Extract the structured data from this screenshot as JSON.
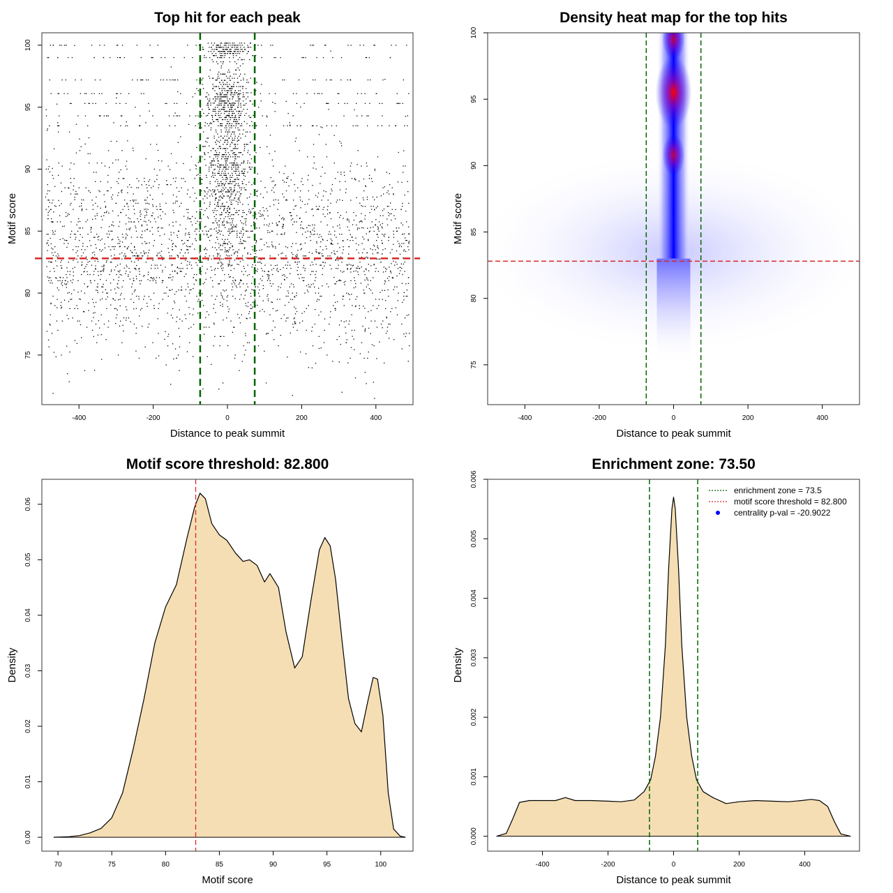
{
  "chart_data": [
    {
      "type": "scatter",
      "title": "Top hit for each peak",
      "xlabel": "Distance to peak summit",
      "ylabel": "Motif score",
      "xlim": [
        -500,
        500
      ],
      "ylim": [
        71,
        101
      ],
      "xticks": [
        -400,
        -200,
        0,
        200,
        400
      ],
      "yticks": [
        75,
        80,
        85,
        90,
        95,
        100
      ],
      "hlines": [
        {
          "value": 82.8,
          "color": "#d62728",
          "style": "dashed"
        }
      ],
      "vlines": [
        {
          "value": -73.5,
          "color": "#006400",
          "style": "dashed"
        },
        {
          "value": 73.5,
          "color": "#006400",
          "style": "dashed"
        }
      ],
      "points_summary": "Several thousand points; uniform spread across x in [-490, 490] for scores ~76-94, dense cluster within |x| < 75 for scores 83-100",
      "colors": {
        "points": "#000000"
      }
    },
    {
      "type": "heatmap",
      "title": "Density heat map for the top hits",
      "xlabel": "Distance to peak summit",
      "ylabel": "Motif score",
      "xlim": [
        -500,
        500
      ],
      "ylim": [
        72,
        100
      ],
      "xticks": [
        -400,
        -200,
        0,
        200,
        400
      ],
      "yticks": [
        75,
        80,
        85,
        90,
        95,
        100
      ],
      "hlines": [
        {
          "value": 82.8,
          "color": "#d62728",
          "style": "dashed"
        }
      ],
      "vlines": [
        {
          "value": -73.5,
          "color": "#006400",
          "style": "dashed"
        },
        {
          "value": 73.5,
          "color": "#006400",
          "style": "dashed"
        }
      ],
      "density_peaks": [
        {
          "x": 0,
          "y": 95.5,
          "level": "max"
        },
        {
          "x": 0,
          "y": 99.5,
          "level": "high"
        },
        {
          "x": 0,
          "y": 90.8,
          "level": "high"
        }
      ],
      "colors": {
        "low": "#ffffff",
        "mid": "#0000ff",
        "high": "#ff0000"
      }
    },
    {
      "type": "area",
      "title": "Motif score threshold: 82.800",
      "xlabel": "Motif score",
      "ylabel": "Density",
      "xlim": [
        68.5,
        103
      ],
      "ylim": [
        -0.0025,
        0.0645
      ],
      "xticks": [
        70,
        75,
        80,
        85,
        90,
        95,
        100
      ],
      "yticks": [
        "0.00",
        "0.01",
        "0.02",
        "0.03",
        "0.04",
        "0.05",
        "0.06"
      ],
      "x": [
        69.6,
        71,
        72,
        73,
        74,
        75,
        76,
        77,
        78,
        79,
        80,
        81,
        82,
        82.7,
        83.2,
        83.7,
        84.3,
        85,
        85.7,
        86.5,
        87.2,
        87.8,
        88.5,
        89.2,
        89.7,
        90.5,
        91.2,
        92,
        92.7,
        93.5,
        94.3,
        94.8,
        95.3,
        95.8,
        96.4,
        97,
        97.6,
        98.2,
        98.8,
        99.3,
        99.7,
        100.2,
        100.7,
        101.2,
        101.8,
        102.3
      ],
      "y": [
        0.0,
        0.0001,
        0.0003,
        0.0008,
        0.0016,
        0.0035,
        0.008,
        0.016,
        0.025,
        0.035,
        0.0415,
        0.0455,
        0.054,
        0.0595,
        0.062,
        0.061,
        0.0565,
        0.0545,
        0.0535,
        0.0512,
        0.0497,
        0.05,
        0.049,
        0.046,
        0.0475,
        0.045,
        0.037,
        0.0305,
        0.0325,
        0.0425,
        0.0518,
        0.054,
        0.0525,
        0.0465,
        0.0355,
        0.025,
        0.0205,
        0.019,
        0.0245,
        0.0288,
        0.0285,
        0.022,
        0.008,
        0.0015,
        0.0002,
        0.0
      ],
      "vlines": [
        {
          "value": 82.8,
          "color": "#d62728",
          "style": "dashed"
        }
      ],
      "colors": {
        "fill": "#f5deb3",
        "line": "#000000"
      }
    },
    {
      "type": "area",
      "title": "Enrichment zone: 73.50",
      "xlabel": "Distance to peak summit",
      "ylabel": "Density",
      "xlim": [
        -567,
        567
      ],
      "ylim": [
        -0.00025,
        0.006
      ],
      "xticks": [
        -400,
        -200,
        0,
        200,
        400
      ],
      "yticks": [
        "0.000",
        "0.001",
        "0.002",
        "0.003",
        "0.004",
        "0.005",
        "0.006"
      ],
      "x": [
        -540,
        -510,
        -490,
        -470,
        -440,
        -400,
        -360,
        -330,
        -300,
        -250,
        -200,
        -160,
        -120,
        -90,
        -70,
        -55,
        -40,
        -25,
        -15,
        -5,
        0,
        5,
        15,
        25,
        40,
        55,
        70,
        90,
        120,
        160,
        200,
        250,
        300,
        350,
        390,
        420,
        445,
        470,
        490,
        510,
        540
      ],
      "y": [
        0.0,
        5e-05,
        0.0003,
        0.00057,
        0.0006,
        0.0006,
        0.0006,
        0.00065,
        0.0006,
        0.0006,
        0.00059,
        0.00058,
        0.00061,
        0.00075,
        0.00095,
        0.00135,
        0.002,
        0.0032,
        0.0045,
        0.0055,
        0.0057,
        0.0055,
        0.0045,
        0.0032,
        0.002,
        0.00135,
        0.00095,
        0.00075,
        0.00065,
        0.00055,
        0.00058,
        0.0006,
        0.00059,
        0.00058,
        0.0006,
        0.00062,
        0.0006,
        0.0005,
        0.00025,
        4e-05,
        0.0
      ],
      "vlines": [
        {
          "value": -73.5,
          "color": "#006400",
          "style": "dashed"
        },
        {
          "value": 73.5,
          "color": "#006400",
          "style": "dashed"
        }
      ],
      "legend": {
        "position": "top-right",
        "entries": [
          {
            "label": "enrichment zone = 73.5",
            "color": "#006400",
            "style": "dotted"
          },
          {
            "label": "motif score threshold = 82.800",
            "color": "#d62728",
            "style": "dotted"
          },
          {
            "label": "centrality p-val = -20.9022",
            "color": "#0000ff",
            "style": "point"
          }
        ]
      },
      "colors": {
        "fill": "#f5deb3",
        "line": "#000000"
      }
    }
  ]
}
